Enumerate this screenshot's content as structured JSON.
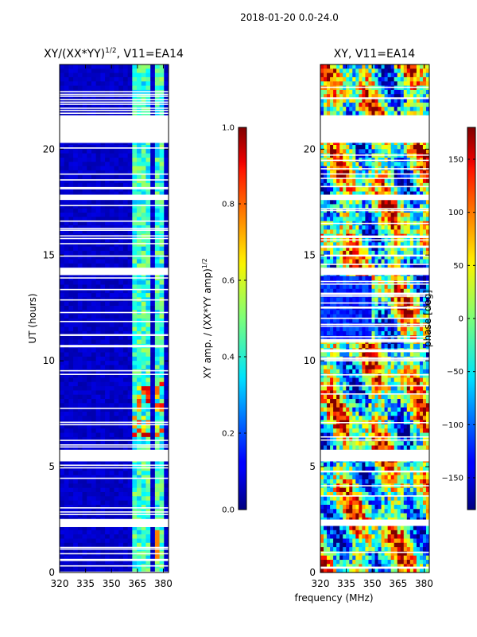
{
  "suptitle": "2018-01-20 0.0-24.0",
  "xlabel": "frequency (MHz)",
  "chart_data": [
    {
      "type": "heatmap",
      "title": "XY/(XX*YY)",
      "title_exponent": "1/2",
      "title_suffix": ", V11=EA14",
      "ylabel": "UT (hours)",
      "xlim": [
        320,
        383
      ],
      "ylim": [
        0,
        24
      ],
      "xticks": [
        "320",
        "335",
        "350",
        "365",
        "380"
      ],
      "xtick_values": [
        320,
        335,
        350,
        365,
        380
      ],
      "yticks": [
        "0",
        "5",
        "10",
        "15",
        "20"
      ],
      "ytick_values": [
        0,
        5,
        10,
        15,
        20
      ],
      "colorbar": {
        "label": "XY amp. / (XX*YY amp)",
        "label_exponent": "1/2",
        "range": [
          0,
          1
        ],
        "ticks": [
          "0.0",
          "0.2",
          "0.4",
          "0.6",
          "0.8",
          "1.0"
        ],
        "tick_values": [
          0,
          0.2,
          0.4,
          0.6,
          0.8,
          1.0
        ],
        "colormap": "jet"
      },
      "gaps_hours": [
        [
          20.3,
          21.6
        ],
        [
          5.25,
          5.8
        ],
        [
          2.2,
          2.5
        ],
        [
          14.05,
          14.4
        ],
        [
          17.6,
          17.85
        ]
      ]
    },
    {
      "type": "heatmap",
      "title": "XY, V11=EA14",
      "ylabel": "",
      "xlim": [
        320,
        383
      ],
      "ylim": [
        0,
        24
      ],
      "xticks": [
        "320",
        "335",
        "350",
        "365",
        "380"
      ],
      "xtick_values": [
        320,
        335,
        350,
        365,
        380
      ],
      "yticks": [
        "0",
        "5",
        "10",
        "15",
        "20"
      ],
      "ytick_values": [
        0,
        5,
        10,
        15,
        20
      ],
      "colorbar": {
        "label": "phase [deg]",
        "range": [
          -180,
          180
        ],
        "ticks": [
          "−150",
          "−100",
          "−50",
          "0",
          "50",
          "100",
          "150"
        ],
        "tick_values": [
          -150,
          -100,
          -50,
          0,
          50,
          100,
          150
        ],
        "colormap": "jet"
      },
      "gaps_hours": [
        [
          20.3,
          21.6
        ],
        [
          5.25,
          5.8
        ],
        [
          2.2,
          2.5
        ],
        [
          14.05,
          14.4
        ],
        [
          17.6,
          17.85
        ]
      ]
    }
  ]
}
